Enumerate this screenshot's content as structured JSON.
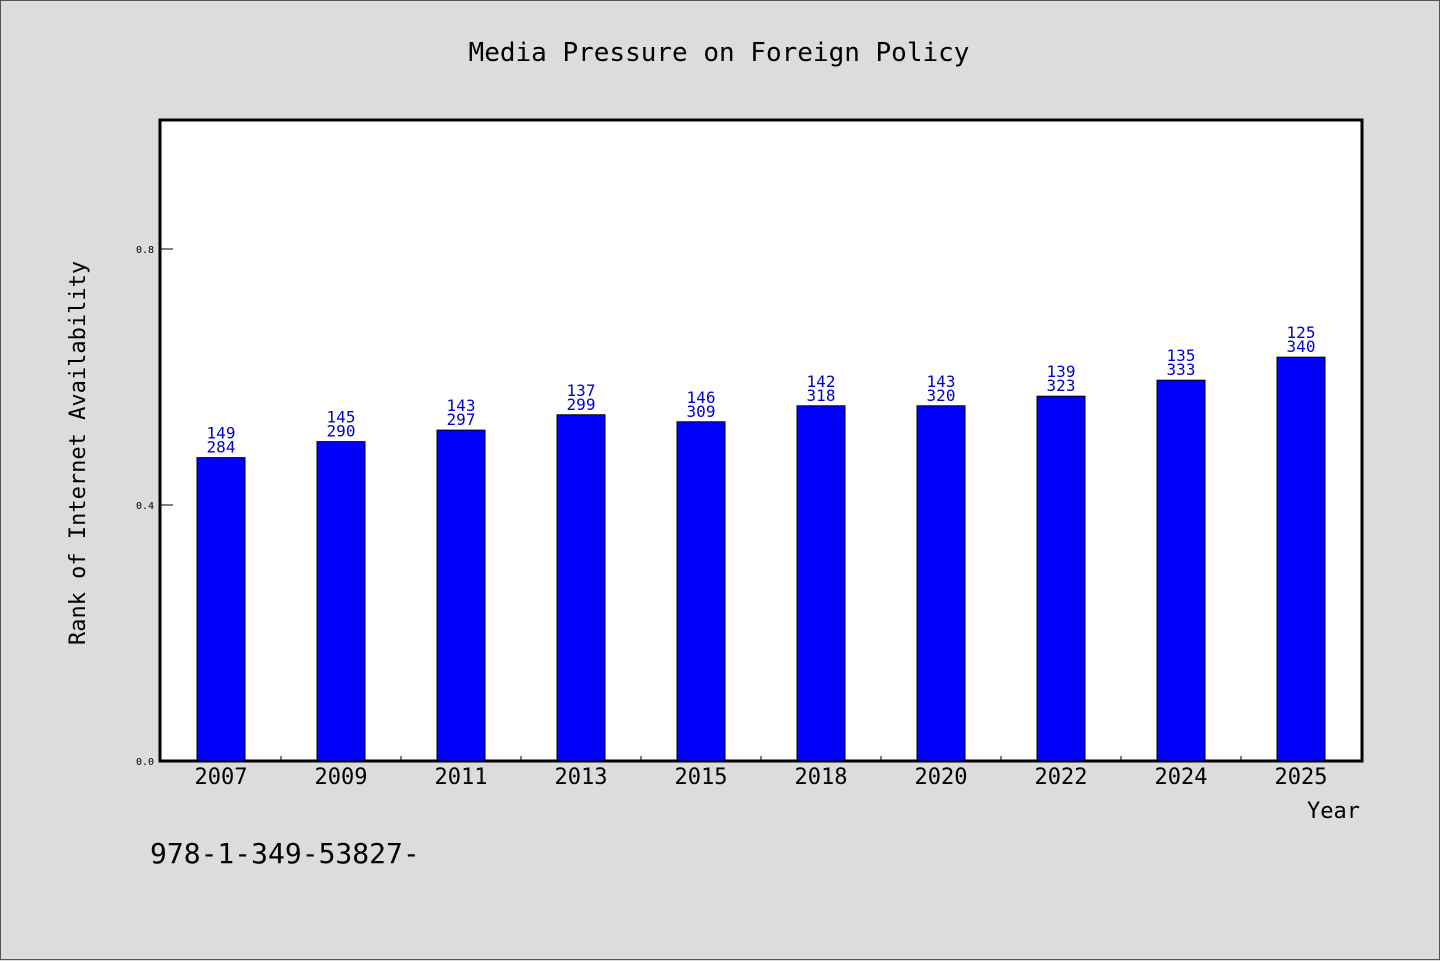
{
  "chart_data": {
    "type": "bar",
    "title": "Media Pressure on Foreign Policy",
    "xlabel": "Year",
    "ylabel": "Rank of Internet Availability",
    "categories": [
      "2007",
      "2009",
      "2011",
      "2013",
      "2015",
      "2018",
      "2020",
      "2022",
      "2024",
      "2025"
    ],
    "values": [
      0.474,
      0.499,
      0.517,
      0.541,
      0.53,
      0.555,
      0.555,
      0.57,
      0.595,
      0.631
    ],
    "labels_top": [
      "149",
      "145",
      "143",
      "137",
      "146",
      "142",
      "143",
      "139",
      "135",
      "125"
    ],
    "labels_bottom": [
      "284",
      "290",
      "297",
      "299",
      "309",
      "318",
      "320",
      "323",
      "333",
      "340"
    ],
    "ylim": [
      0.0,
      1.0
    ],
    "yticks": [
      0.0,
      0.4,
      0.8
    ],
    "ytick_labels": [
      "0.0",
      "0.4",
      "0.8"
    ],
    "grid": false,
    "colors": {
      "bar": "#0000ff",
      "bar_edge": "#000000",
      "label": "#0000cc",
      "plot_bg": "#ffffff",
      "page_bg": "#dcdcdc"
    }
  },
  "footnote": "978-1-349-53827-"
}
